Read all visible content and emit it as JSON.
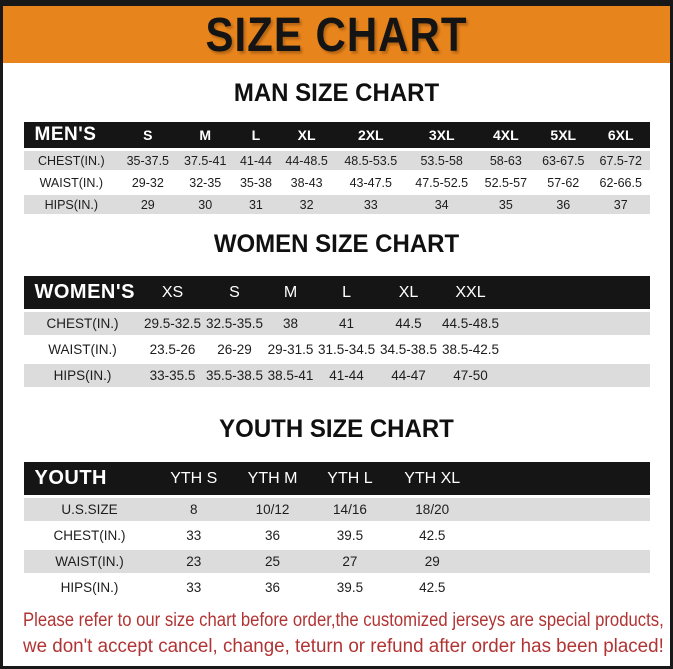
{
  "banner": {
    "title": "SIZE CHART"
  },
  "colors": {
    "accent_orange": "#E8841C",
    "bar_black": "#151515",
    "row_gray": "#DCDCDC",
    "note_red": "#B13434"
  },
  "sections": [
    {
      "heading": "MAN SIZE CHART",
      "kind": "men",
      "table": {
        "header": [
          "MEN'S",
          "S",
          "M",
          "L",
          "XL",
          "2XL",
          "3XL",
          "4XL",
          "5XL",
          "6XL"
        ],
        "rows": [
          {
            "label": "CHEST(IN.)",
            "values": [
              "35-37.5",
              "37.5-41",
              "41-44",
              "44-48.5",
              "48.5-53.5",
              "53.5-58",
              "58-63",
              "63-67.5",
              "67.5-72"
            ]
          },
          {
            "label": "WAIST(IN.)",
            "values": [
              "29-32",
              "32-35",
              "35-38",
              "38-43",
              "43-47.5",
              "47.5-52.5",
              "52.5-57",
              "57-62",
              "62-66.5"
            ]
          },
          {
            "label": "HIPS(IN.)",
            "values": [
              "29",
              "30",
              "31",
              "32",
              "33",
              "34",
              "35",
              "36",
              "37"
            ]
          }
        ]
      }
    },
    {
      "heading": "WOMEN SIZE CHART",
      "kind": "women",
      "table": {
        "header": [
          "WOMEN'S",
          "XS",
          "S",
          "M",
          "L",
          "XL",
          "XXL"
        ],
        "rows": [
          {
            "label": "CHEST(IN.)",
            "values": [
              "29.5-32.5",
              "32.5-35.5",
              "38",
              "41",
              "44.5",
              "44.5-48.5"
            ]
          },
          {
            "label": "WAIST(IN.)",
            "values": [
              "23.5-26",
              "26-29",
              "29-31.5",
              "31.5-34.5",
              "34.5-38.5",
              "38.5-42.5"
            ]
          },
          {
            "label": "HIPS(IN.)",
            "values": [
              "33-35.5",
              "35.5-38.5",
              "38.5-41",
              "41-44",
              "44-47",
              "47-50"
            ]
          }
        ]
      }
    },
    {
      "heading": "YOUTH SIZE CHART",
      "kind": "youth",
      "table": {
        "header": [
          "YOUTH",
          "YTH S",
          "YTH M",
          "YTH L",
          "YTH XL"
        ],
        "rows": [
          {
            "label": "U.S.SIZE",
            "values": [
              "8",
              "10/12",
              "14/16",
              "18/20"
            ]
          },
          {
            "label": "CHEST(IN.)",
            "values": [
              "33",
              "36",
              "39.5",
              "42.5"
            ]
          },
          {
            "label": "WAIST(IN.)",
            "values": [
              "23",
              "25",
              "27",
              "29"
            ]
          },
          {
            "label": "HIPS(IN.)",
            "values": [
              "33",
              "36",
              "39.5",
              "42.5"
            ]
          }
        ]
      }
    }
  ],
  "footer": {
    "lines": [
      "Please refer to our size chart before order,the customized jerseys are special products,",
      "we don't accept cancel, change, teturn or refund after order has been placed!"
    ]
  }
}
